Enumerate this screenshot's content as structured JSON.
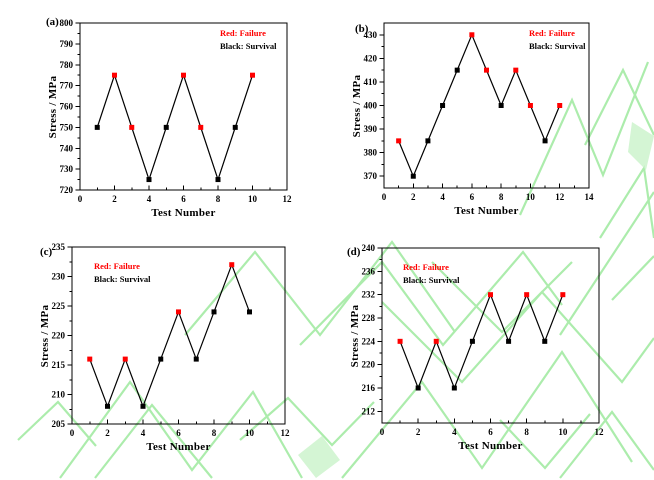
{
  "figure": {
    "background": "#ffffff",
    "watermark_color": "#98e898",
    "watermark_fill_color": "#c9f2c9",
    "failure_color": "#ff0000",
    "survival_color": "#000000",
    "axis_color": "#000000"
  },
  "chart_data": [
    {
      "id": "a",
      "type": "line",
      "panel_label": "(a)",
      "xlabel": "Test Number",
      "ylabel": "Stress / MPa",
      "xlim": [
        0,
        12
      ],
      "ylim": [
        720,
        800
      ],
      "xticks": [
        0,
        2,
        4,
        6,
        8,
        10,
        12
      ],
      "yticks": [
        720,
        730,
        740,
        750,
        760,
        770,
        780,
        790,
        800
      ],
      "x_minor_step": 1,
      "y_minor_step": 5,
      "grid": false,
      "marker": "square",
      "legend": {
        "position": "top-right",
        "entries": [
          {
            "label": "Red: Failure",
            "color": "#ff0000"
          },
          {
            "label": "Black: Survival",
            "color": "#000000"
          }
        ]
      },
      "points": [
        {
          "x": 1,
          "y": 750,
          "status": "survival"
        },
        {
          "x": 2,
          "y": 775,
          "status": "failure"
        },
        {
          "x": 3,
          "y": 750,
          "status": "failure"
        },
        {
          "x": 4,
          "y": 725,
          "status": "survival"
        },
        {
          "x": 5,
          "y": 750,
          "status": "survival"
        },
        {
          "x": 6,
          "y": 775,
          "status": "failure"
        },
        {
          "x": 7,
          "y": 750,
          "status": "failure"
        },
        {
          "x": 8,
          "y": 725,
          "status": "survival"
        },
        {
          "x": 9,
          "y": 750,
          "status": "survival"
        },
        {
          "x": 10,
          "y": 775,
          "status": "failure"
        }
      ]
    },
    {
      "id": "b",
      "type": "line",
      "panel_label": "(b)",
      "xlabel": "Test Number",
      "ylabel": "Stress / MPa",
      "xlim": [
        0,
        14
      ],
      "ylim": [
        365,
        435
      ],
      "xticks": [
        0,
        2,
        4,
        6,
        8,
        10,
        12,
        14
      ],
      "yticks": [
        370,
        380,
        390,
        400,
        410,
        420,
        430
      ],
      "x_minor_step": 1,
      "y_minor_step": 5,
      "grid": false,
      "marker": "square",
      "legend": {
        "position": "top-right",
        "entries": [
          {
            "label": "Red: Failure",
            "color": "#ff0000"
          },
          {
            "label": "Black: Survival",
            "color": "#000000"
          }
        ]
      },
      "points": [
        {
          "x": 1,
          "y": 385,
          "status": "failure"
        },
        {
          "x": 2,
          "y": 370,
          "status": "survival"
        },
        {
          "x": 3,
          "y": 385,
          "status": "survival"
        },
        {
          "x": 4,
          "y": 400,
          "status": "survival"
        },
        {
          "x": 5,
          "y": 415,
          "status": "survival"
        },
        {
          "x": 6,
          "y": 430,
          "status": "failure"
        },
        {
          "x": 7,
          "y": 415,
          "status": "failure"
        },
        {
          "x": 8,
          "y": 400,
          "status": "survival"
        },
        {
          "x": 9,
          "y": 415,
          "status": "failure"
        },
        {
          "x": 10,
          "y": 400,
          "status": "failure"
        },
        {
          "x": 11,
          "y": 385,
          "status": "survival"
        },
        {
          "x": 12,
          "y": 400,
          "status": "failure"
        }
      ]
    },
    {
      "id": "c",
      "type": "line",
      "panel_label": "(c)",
      "xlabel": "Test Number",
      "ylabel": "Stress / MPa",
      "xlim": [
        0,
        12
      ],
      "ylim": [
        205,
        235
      ],
      "xticks": [
        0,
        2,
        4,
        6,
        8,
        10,
        12
      ],
      "yticks": [
        205,
        210,
        215,
        220,
        225,
        230,
        235
      ],
      "x_minor_step": 1,
      "y_minor_step": 2.5,
      "grid": false,
      "marker": "square",
      "legend": {
        "position": "top-left",
        "entries": [
          {
            "label": "Red: Failure",
            "color": "#ff0000"
          },
          {
            "label": "Black: Survival",
            "color": "#000000"
          }
        ]
      },
      "points": [
        {
          "x": 1,
          "y": 216,
          "status": "failure"
        },
        {
          "x": 2,
          "y": 208,
          "status": "survival"
        },
        {
          "x": 3,
          "y": 216,
          "status": "failure"
        },
        {
          "x": 4,
          "y": 208,
          "status": "survival"
        },
        {
          "x": 5,
          "y": 216,
          "status": "survival"
        },
        {
          "x": 6,
          "y": 224,
          "status": "failure"
        },
        {
          "x": 7,
          "y": 216,
          "status": "survival"
        },
        {
          "x": 8,
          "y": 224,
          "status": "survival"
        },
        {
          "x": 9,
          "y": 232,
          "status": "failure"
        },
        {
          "x": 10,
          "y": 224,
          "status": "survival"
        }
      ]
    },
    {
      "id": "d",
      "type": "line",
      "panel_label": "(d)",
      "xlabel": "Test Number",
      "ylabel": "Stress / MPa",
      "xlim": [
        0,
        12
      ],
      "ylim": [
        210,
        240
      ],
      "xticks": [
        0,
        2,
        4,
        6,
        8,
        10,
        12
      ],
      "yticks": [
        212,
        216,
        220,
        224,
        228,
        232,
        236,
        240
      ],
      "x_minor_step": 1,
      "y_minor_step": 2,
      "grid": false,
      "marker": "square",
      "legend": {
        "position": "top-left",
        "entries": [
          {
            "label": "Red: Failure",
            "color": "#ff0000"
          },
          {
            "label": "Black: Survival",
            "color": "#000000"
          }
        ]
      },
      "points": [
        {
          "x": 1,
          "y": 224,
          "status": "failure"
        },
        {
          "x": 2,
          "y": 216,
          "status": "survival"
        },
        {
          "x": 3,
          "y": 224,
          "status": "failure"
        },
        {
          "x": 4,
          "y": 216,
          "status": "survival"
        },
        {
          "x": 5,
          "y": 224,
          "status": "survival"
        },
        {
          "x": 6,
          "y": 232,
          "status": "failure"
        },
        {
          "x": 7,
          "y": 224,
          "status": "survival"
        },
        {
          "x": 8,
          "y": 232,
          "status": "failure"
        },
        {
          "x": 9,
          "y": 224,
          "status": "survival"
        },
        {
          "x": 10,
          "y": 232,
          "status": "failure"
        }
      ]
    }
  ]
}
